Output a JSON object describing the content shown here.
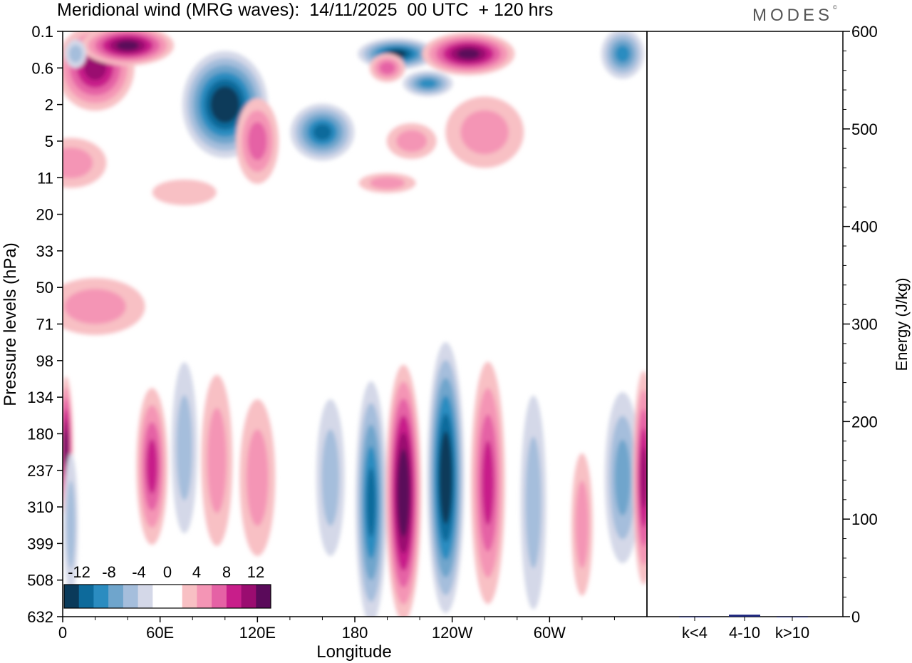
{
  "header": {
    "title": "Meridional wind (MRG waves):  14/11/2025  00 UTC  + 120 hrs",
    "logo": "MODES",
    "logo_mark": "©"
  },
  "chart_data": [
    {
      "type": "heatmap",
      "title": "Meridional wind (MRG waves)",
      "xlabel": "Longitude",
      "ylabel": "Pressure levels (hPa)",
      "x_ticks": [
        "0",
        "60E",
        "120E",
        "180",
        "120W",
        "60W"
      ],
      "y_ticks": [
        "0.1",
        "0.6",
        "2",
        "5",
        "11",
        "20",
        "33",
        "50",
        "71",
        "98",
        "134",
        "180",
        "237",
        "310",
        "399",
        "508",
        "632"
      ],
      "colorbar": {
        "labels": [
          "-12",
          "-8",
          "-4",
          "0",
          "4",
          "8",
          "12"
        ],
        "colors": [
          "#0a3a5a",
          "#0d6a9b",
          "#2b8cc0",
          "#6fa5cc",
          "#a5bedc",
          "#d4d8e8",
          "#ffffff",
          "#ffffff",
          "#f8c0c4",
          "#f495b5",
          "#e562a5",
          "#c81e8a",
          "#9a0c70",
          "#5a0a5a"
        ]
      },
      "features": [
        {
          "lon": 100,
          "lev": 2,
          "val": -14,
          "rx": 60,
          "ry": 75
        },
        {
          "lon": 20,
          "lev": 0.6,
          "val": 10,
          "rx": 55,
          "ry": 60
        },
        {
          "lon": 40,
          "lev": 0.2,
          "val": 13,
          "rx": 65,
          "ry": 28
        },
        {
          "lon": 8,
          "lev": 0.3,
          "val": -5,
          "rx": 15,
          "ry": 20
        },
        {
          "lon": 160,
          "lev": 4,
          "val": -10,
          "rx": 45,
          "ry": 40
        },
        {
          "lon": 120,
          "lev": 5,
          "val": 7,
          "rx": 30,
          "ry": 60
        },
        {
          "lon": 206,
          "lev": 0.3,
          "val": -13,
          "rx": 55,
          "ry": 22
        },
        {
          "lon": 200,
          "lev": 0.6,
          "val": 7,
          "rx": 25,
          "ry": 20
        },
        {
          "lon": 225,
          "lev": 1,
          "val": -8,
          "rx": 35,
          "ry": 18
        },
        {
          "lon": 215,
          "lev": 5,
          "val": 5,
          "rx": 35,
          "ry": 25
        },
        {
          "lon": 250,
          "lev": 0.3,
          "val": 12,
          "rx": 65,
          "ry": 30
        },
        {
          "lon": 260,
          "lev": 4,
          "val": 4,
          "rx": 55,
          "ry": 50
        },
        {
          "lon": 345,
          "lev": 0.3,
          "val": -8,
          "rx": 30,
          "ry": 35
        },
        {
          "lon": 5,
          "lev": 8,
          "val": 4,
          "rx": 50,
          "ry": 35
        },
        {
          "lon": 200,
          "lev": 12,
          "val": 4,
          "rx": 40,
          "ry": 14
        },
        {
          "lon": 75,
          "lev": 14,
          "val": 3,
          "rx": 45,
          "ry": 18
        },
        {
          "lon": 20,
          "lev": 60,
          "val": 4,
          "rx": 70,
          "ry": 40
        },
        {
          "lon": 55,
          "lev": 230,
          "val": 9,
          "rx": 22,
          "ry": 110
        },
        {
          "lon": 75,
          "lev": 200,
          "val": -5,
          "rx": 18,
          "ry": 120
        },
        {
          "lon": 95,
          "lev": 220,
          "val": 4,
          "rx": 22,
          "ry": 120
        },
        {
          "lon": 120,
          "lev": 250,
          "val": 4,
          "rx": 25,
          "ry": 110
        },
        {
          "lon": 165,
          "lev": 250,
          "val": -4,
          "rx": 20,
          "ry": 110
        },
        {
          "lon": 190,
          "lev": 300,
          "val": -10,
          "rx": 22,
          "ry": 170
        },
        {
          "lon": 210,
          "lev": 280,
          "val": 14,
          "rx": 25,
          "ry": 180
        },
        {
          "lon": 236,
          "lev": 250,
          "val": -14,
          "rx": 26,
          "ry": 190
        },
        {
          "lon": 262,
          "lev": 260,
          "val": 9,
          "rx": 24,
          "ry": 170
        },
        {
          "lon": 290,
          "lev": 300,
          "val": -4,
          "rx": 18,
          "ry": 150
        },
        {
          "lon": 320,
          "lev": 350,
          "val": 4,
          "rx": 15,
          "ry": 100
        },
        {
          "lon": 345,
          "lev": 250,
          "val": -6,
          "rx": 25,
          "ry": 120
        },
        {
          "lon": 358,
          "lev": 250,
          "val": 11,
          "rx": 15,
          "ry": 150
        },
        {
          "lon": 2,
          "lev": 200,
          "val": 12,
          "rx": 10,
          "ry": 100
        },
        {
          "lon": 5,
          "lev": 350,
          "val": -4,
          "rx": 10,
          "ry": 100
        }
      ]
    },
    {
      "type": "bar",
      "title": "",
      "categories": [
        "k<4",
        "4-10",
        "k>10"
      ],
      "values": [
        0,
        2,
        0
      ],
      "ylabel": "Energy (J/kg)",
      "ylim": [
        0,
        600
      ],
      "y_ticks": [
        "0",
        "100",
        "200",
        "300",
        "400",
        "500",
        "600"
      ],
      "bar_color": "#1a237e"
    }
  ]
}
